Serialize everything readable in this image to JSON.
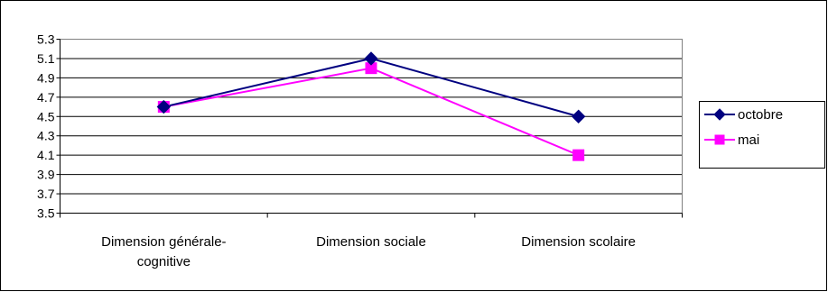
{
  "chart_data": {
    "type": "line",
    "title": "",
    "xlabel": "",
    "ylabel": "",
    "categories": [
      [
        "Dimension générale-",
        "cognitive"
      ],
      [
        "Dimension sociale"
      ],
      [
        "Dimension scolaire"
      ]
    ],
    "series": [
      {
        "name": "octobre",
        "values": [
          4.6,
          5.1,
          4.5
        ],
        "color": "#000080",
        "marker": "diamond"
      },
      {
        "name": "mai",
        "values": [
          4.6,
          5.0,
          4.1
        ],
        "color": "#ff00ff",
        "marker": "square"
      }
    ],
    "ylim": [
      3.5,
      5.3
    ],
    "yticks": [
      "3.5",
      "3.7",
      "3.9",
      "4.1",
      "4.3",
      "4.5",
      "4.7",
      "4.9",
      "5.1",
      "5.3"
    ],
    "grid": true,
    "legend_position": "right"
  }
}
